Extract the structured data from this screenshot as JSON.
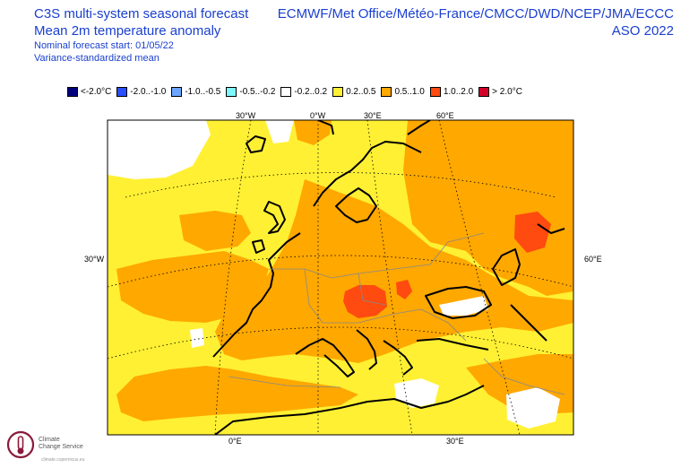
{
  "header": {
    "title_line1": "C3S multi-system seasonal forecast",
    "title_line2": "Mean 2m temperature anomaly",
    "subtitle_line1": "Nominal forecast start: 01/05/22",
    "subtitle_line2": "Variance-standardized mean",
    "systems": "ECMWF/Met Office/Météo-France/CMCC/DWD/NCEP/JMA/ECCC",
    "season": "ASO 2022"
  },
  "legend": {
    "items": [
      {
        "label": "<-2.0°C",
        "color": "#00007f"
      },
      {
        "label": "-2.0..-1.0",
        "color": "#2a4fff"
      },
      {
        "label": "-1.0..-0.5",
        "color": "#6aa6ff"
      },
      {
        "label": "-0.5..-0.2",
        "color": "#7ff7ff"
      },
      {
        "label": "-0.2..0.2",
        "color": "#ffffff"
      },
      {
        "label": "0.2..0.5",
        "color": "#fff033"
      },
      {
        "label": "0.5..1.0",
        "color": "#ffa800"
      },
      {
        "label": "1.0..2.0",
        "color": "#ff4a10"
      },
      {
        "label": "> 2.0°C",
        "color": "#d4002a"
      }
    ]
  },
  "map": {
    "lon_labels_top": [
      "30°W",
      "0°W",
      "30°E",
      "60°E"
    ],
    "lat_labels": [
      "30°W",
      "60°E"
    ],
    "lon_labels_bottom": [
      "0°E",
      "30°E"
    ]
  },
  "logo": {
    "line1": "Climate",
    "line2": "Change Service",
    "footer": "climate.copernicus.eu"
  }
}
